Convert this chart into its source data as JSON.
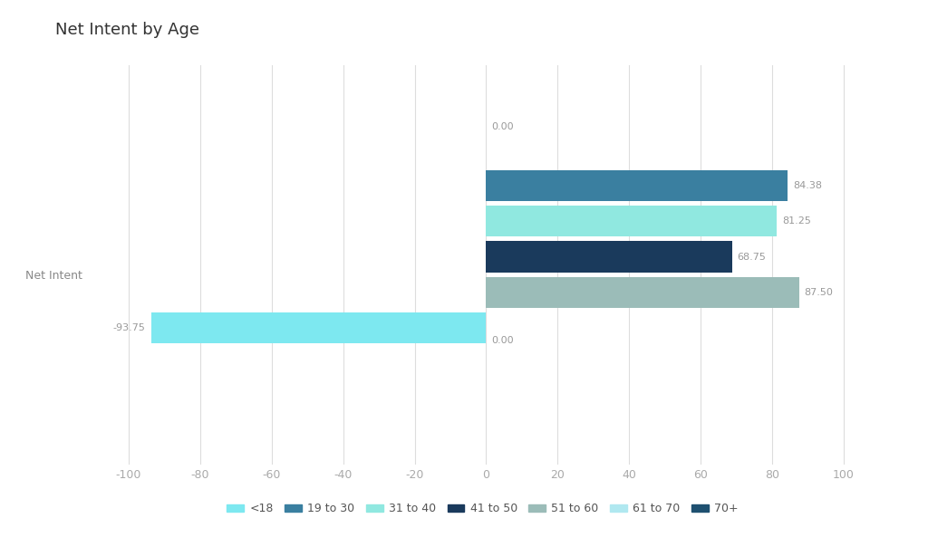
{
  "title": "Net Intent by Age",
  "ylabel": "Net Intent",
  "xlabel_ticks": [
    -100,
    -80,
    -60,
    -40,
    -20,
    0,
    20,
    40,
    60,
    80,
    100
  ],
  "xlim": [
    -110,
    108
  ],
  "series_top_to_bottom": [
    {
      "label": "61 to 70",
      "value": 0.0,
      "color": "#b0e8f0"
    },
    {
      "label": "19 to 30",
      "value": 84.38,
      "color": "#3a7fa0"
    },
    {
      "label": "31 to 40",
      "value": 81.25,
      "color": "#90e8e0"
    },
    {
      "label": "41 to 50",
      "value": 68.75,
      "color": "#1a3a5c"
    },
    {
      "label": "51 to 60",
      "value": 87.5,
      "color": "#9bbcb8"
    },
    {
      "label": "<18",
      "value": -93.75,
      "color": "#7de8f0"
    },
    {
      "label": "70+",
      "value": 0.0,
      "color": "#1e5070"
    }
  ],
  "legend_order": [
    {
      "label": "<18",
      "color": "#7de8f0"
    },
    {
      "label": "19 to 30",
      "color": "#3a7fa0"
    },
    {
      "label": "31 to 40",
      "color": "#90e8e0"
    },
    {
      "label": "41 to 50",
      "color": "#1a3a5c"
    },
    {
      "label": "51 to 60",
      "color": "#9bbcb8"
    },
    {
      "label": "61 to 70",
      "color": "#b0e8f0"
    },
    {
      "label": "70+",
      "color": "#1e5070"
    }
  ],
  "bar_height": 0.055,
  "bar_gap": 0.003,
  "ylabel_ytick": 0.0,
  "background_color": "#ffffff",
  "title_fontsize": 13,
  "tick_label_color": "#aaaaaa",
  "grid_color": "#dddddd",
  "value_label_color": "#999999",
  "ylabel_color": "#888888"
}
